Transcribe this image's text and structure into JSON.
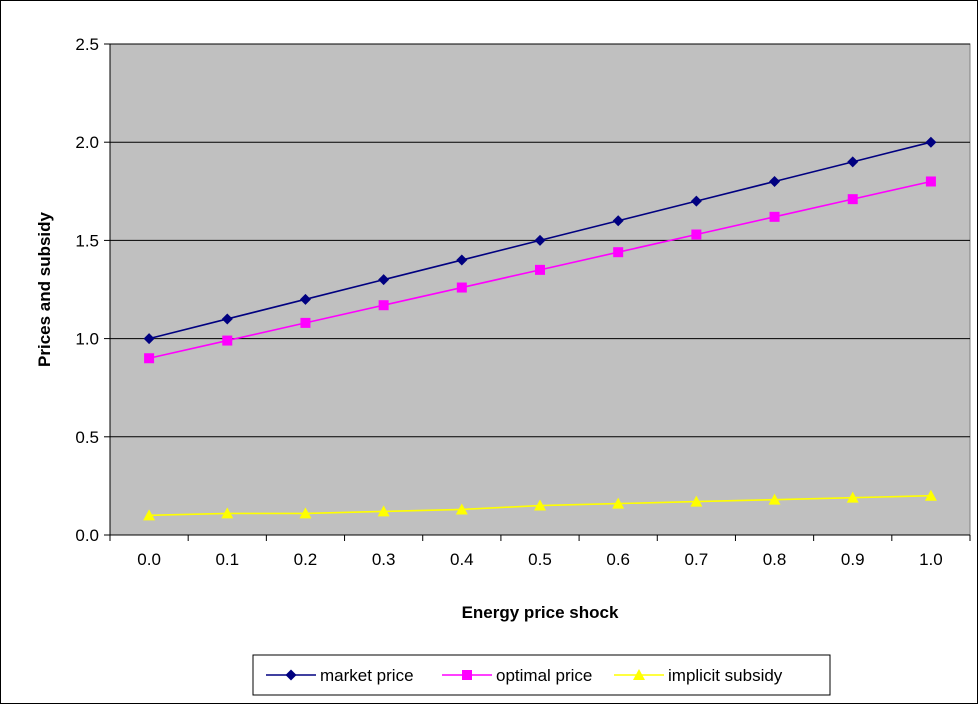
{
  "chart_data": {
    "type": "line",
    "title": "",
    "xlabel": "Energy price shock",
    "ylabel": "Prices and subsidy",
    "categories": [
      "0.0",
      "0.1",
      "0.2",
      "0.3",
      "0.4",
      "0.5",
      "0.6",
      "0.7",
      "0.8",
      "0.9",
      "1.0"
    ],
    "yticks": [
      "0.0",
      "0.5",
      "1.0",
      "1.5",
      "2.0",
      "2.5"
    ],
    "ylim": [
      0,
      2.5
    ],
    "grid": true,
    "legend_position": "bottom",
    "plot_background": "#c0c0c0",
    "series": [
      {
        "name": "market price",
        "color": "#000080",
        "marker": "diamond",
        "values": [
          1.0,
          1.1,
          1.2,
          1.3,
          1.4,
          1.5,
          1.6,
          1.7,
          1.8,
          1.9,
          2.0
        ]
      },
      {
        "name": "optimal price",
        "color": "#ff00ff",
        "marker": "square",
        "values": [
          0.9,
          0.99,
          1.08,
          1.17,
          1.26,
          1.35,
          1.44,
          1.53,
          1.62,
          1.71,
          1.8
        ]
      },
      {
        "name": "implicit subsidy",
        "color": "#ffff00",
        "marker": "triangle",
        "values": [
          0.1,
          0.11,
          0.11,
          0.12,
          0.13,
          0.15,
          0.16,
          0.17,
          0.18,
          0.19,
          0.2
        ]
      }
    ]
  }
}
